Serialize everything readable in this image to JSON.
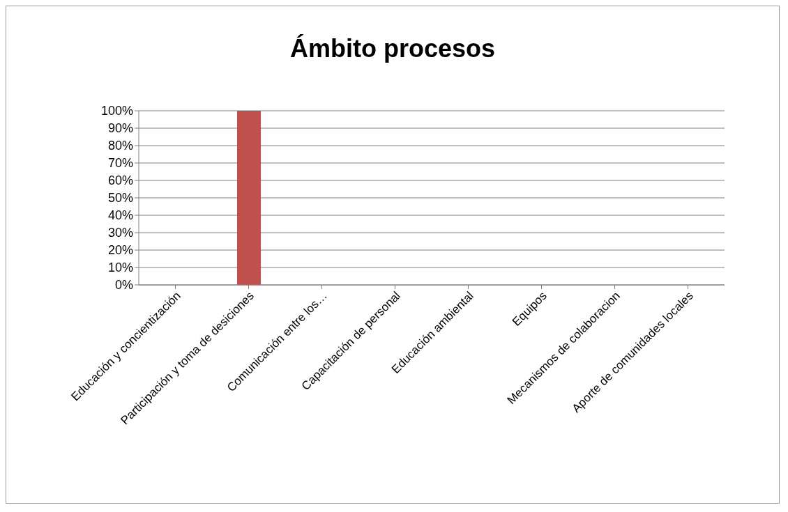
{
  "chart_data": {
    "type": "bar",
    "title": "Ámbito procesos",
    "categories": [
      "Educación y concientización",
      "Participación y toma de desiciones",
      "Comunicación entre los…",
      "Capacitación de personal",
      "Educación ambiental",
      "Equipos",
      "Mecanismos de colaboracion",
      "Aporte de comunidades locales"
    ],
    "values": [
      0,
      100,
      0,
      0,
      0,
      0,
      0,
      0
    ],
    "color": "#c0504d",
    "ylim": [
      0,
      100
    ],
    "yticks": [
      {
        "value": 0,
        "label": "0%"
      },
      {
        "value": 10,
        "label": "10%"
      },
      {
        "value": 20,
        "label": "20%"
      },
      {
        "value": 30,
        "label": "30%"
      },
      {
        "value": 40,
        "label": "40%"
      },
      {
        "value": 50,
        "label": "50%"
      },
      {
        "value": 60,
        "label": "60%"
      },
      {
        "value": 70,
        "label": "70%"
      },
      {
        "value": 80,
        "label": "80%"
      },
      {
        "value": 90,
        "label": "90%"
      },
      {
        "value": 100,
        "label": "100%"
      }
    ],
    "grid": "y",
    "legend": false
  }
}
